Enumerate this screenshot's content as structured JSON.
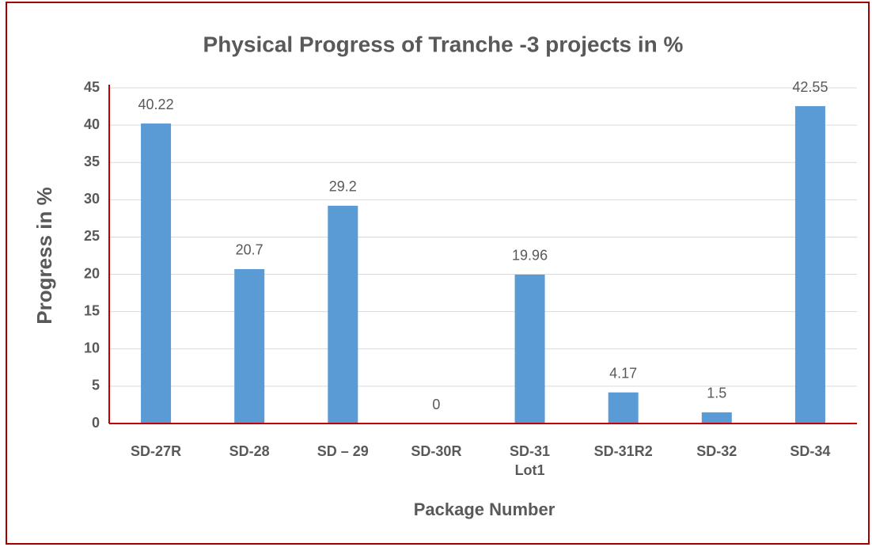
{
  "chart_data": {
    "type": "bar",
    "title": "Physical Progress of Tranche -3 projects in %",
    "x_label": "Package Number",
    "y_label": "Progress in %",
    "categories": [
      "SD-27R",
      "SD-28",
      "SD – 29",
      "SD-30R",
      "SD-31\nLot1",
      "SD-31R2",
      "SD-32",
      "SD-34"
    ],
    "values": [
      40.22,
      20.7,
      29.2,
      0,
      19.96,
      4.17,
      1.5,
      42.55
    ],
    "color": "#5b9bd5",
    "axis_color": "#c00000",
    "ylim": [
      0,
      45
    ],
    "yticks": [
      0,
      5,
      10,
      15,
      20,
      25,
      30,
      35,
      40,
      45
    ],
    "grid": true
  }
}
